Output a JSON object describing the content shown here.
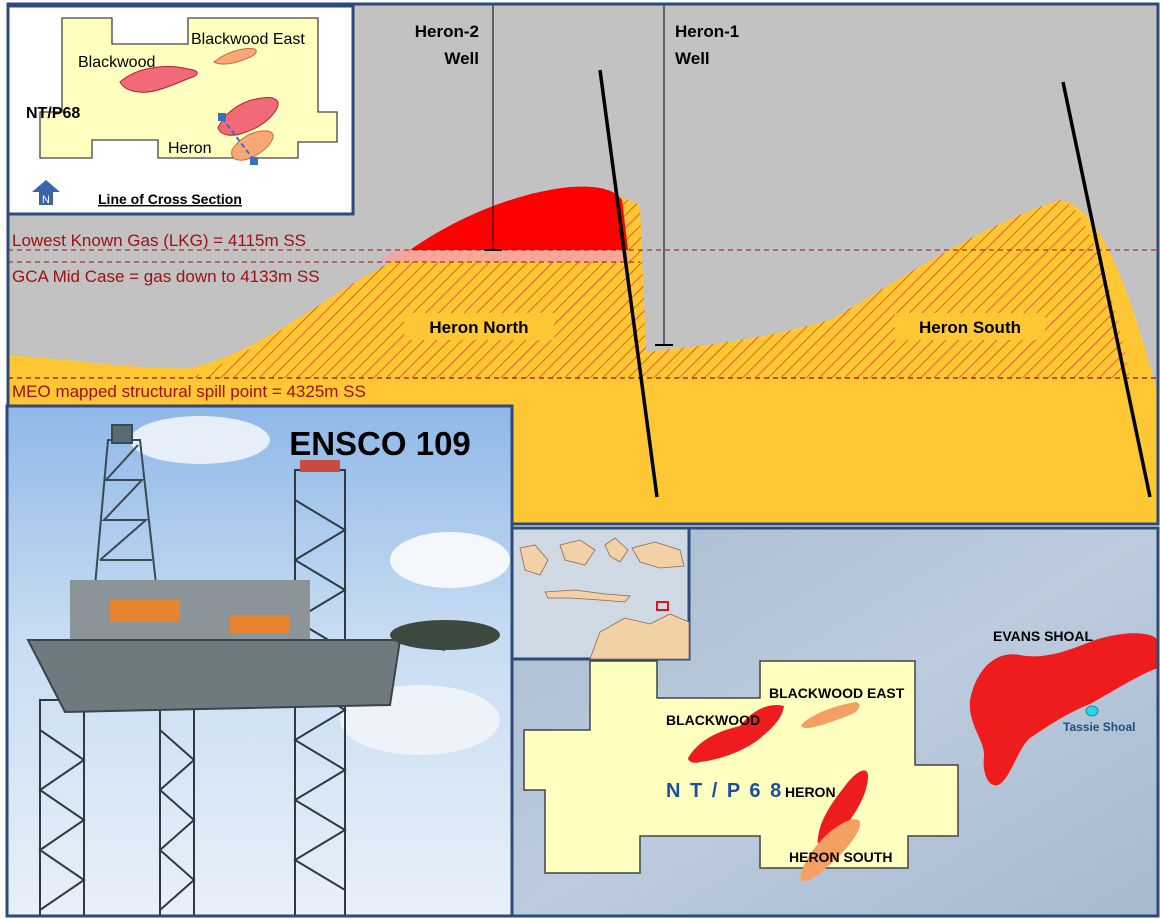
{
  "cross_section": {
    "wells": [
      {
        "name": "Heron-2",
        "suffix": "Well"
      },
      {
        "name": "Heron-1",
        "suffix": "Well"
      }
    ],
    "levels": {
      "lkg": "Lowest Known Gas (LKG) = 4115m SS",
      "gca": "GCA  Mid Case = gas down to 4133m SS",
      "spill": "MEO mapped structural spill point = 4325m SS"
    },
    "fields": {
      "north": "Heron North",
      "south": "Heron South"
    }
  },
  "inset_map": {
    "labels": {
      "blackwood": "Blackwood",
      "blackwood_east": "Blackwood East",
      "permit": "NT/P68",
      "heron": "Heron"
    },
    "north_letter": "N",
    "caption": "Line of Cross Section"
  },
  "rig_photo": {
    "title": "ENSCO 109"
  },
  "regional_map": {
    "permit": "N T / P 6 8",
    "labels": {
      "blackwood": "BLACKWOOD",
      "blackwood_east": "BLACKWOOD EAST",
      "heron": "HERON",
      "heron_south": "HERON SOUTH",
      "evans_shoal": "EVANS SHOAL",
      "tassie_shoal": "Tassie Shoal"
    }
  },
  "colors": {
    "sky_grey": "#c2c2c2",
    "reservoir_yellow": "#ffc733",
    "gas_red": "#ff0000",
    "permit_fill": "#ffffc0",
    "frame_blue": "#2e4a7a",
    "level_text": "#a01010"
  }
}
